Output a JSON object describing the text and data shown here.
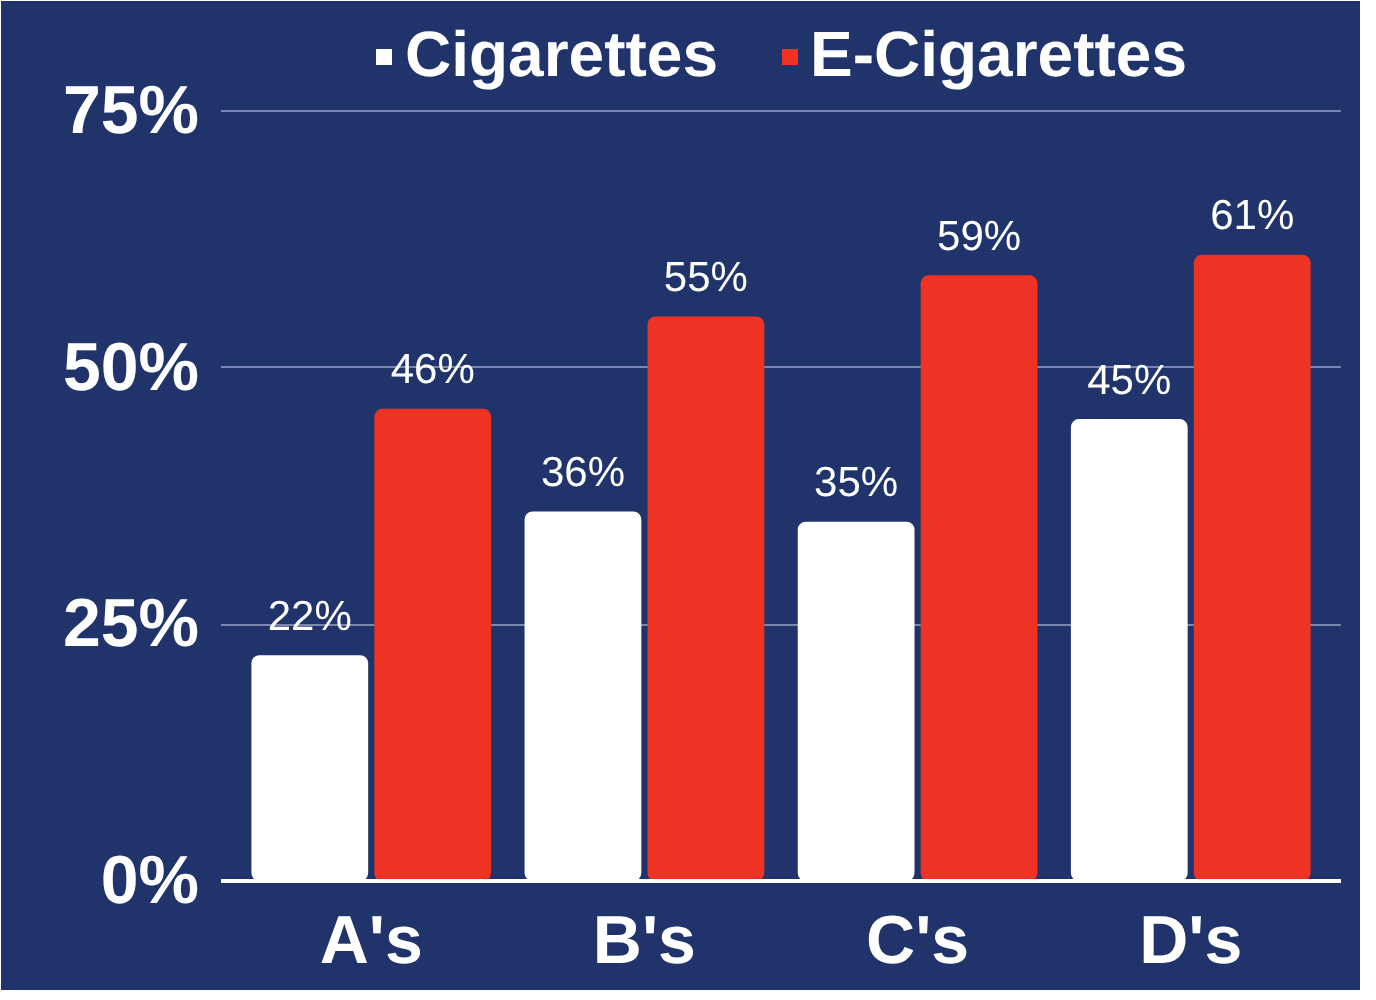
{
  "chart_data": {
    "type": "bar",
    "categories": [
      "A's",
      "B's",
      "C's",
      "D's"
    ],
    "series": [
      {
        "name": "Cigarettes",
        "color": "#ffffff",
        "values": [
          22,
          36,
          35,
          45
        ],
        "value_labels": [
          "22%",
          "36%",
          "35%",
          "45%"
        ]
      },
      {
        "name": "E-Cigarettes",
        "color": "#ee3224",
        "values": [
          46,
          55,
          59,
          61
        ],
        "value_labels": [
          "46%",
          "55%",
          "59%",
          "61%"
        ]
      }
    ],
    "ylim": [
      0,
      75
    ],
    "yticks": [
      {
        "value": 0,
        "label": "0%"
      },
      {
        "value": 25,
        "label": "25%"
      },
      {
        "value": 50,
        "label": "50%"
      },
      {
        "value": 75,
        "label": "75%"
      }
    ],
    "grid": "y",
    "legend": "top"
  }
}
